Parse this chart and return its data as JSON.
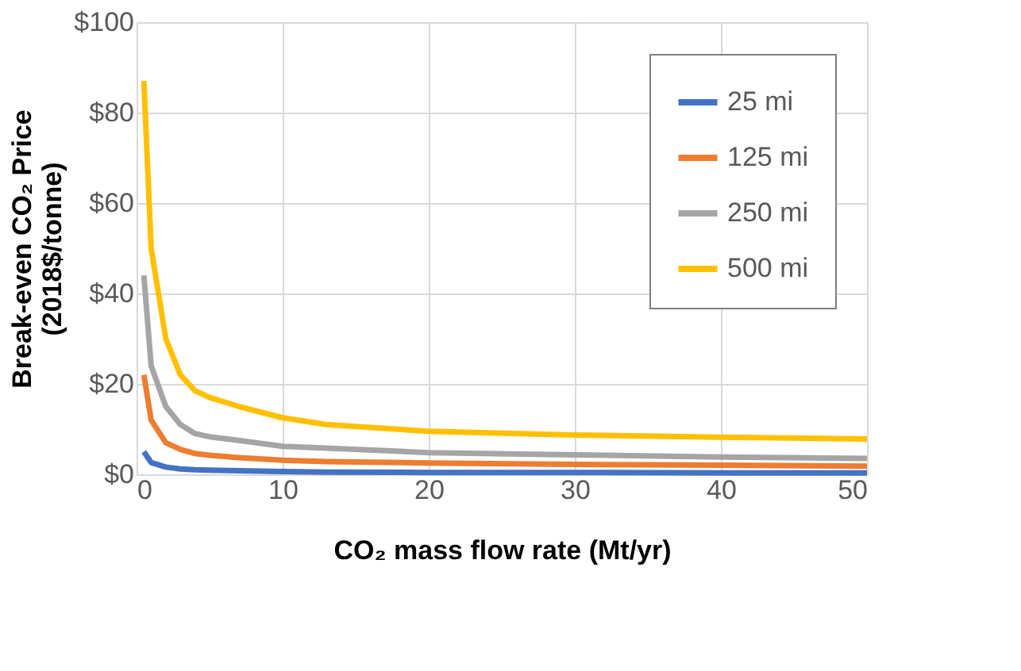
{
  "chart_data": {
    "type": "line",
    "xlabel": "CO₂ mass flow rate (Mt/yr)",
    "ylabel": "Break-even CO₂ Price\n(2018$/tonne)",
    "x": [
      0.5,
      1,
      2,
      3,
      4,
      5,
      7,
      10,
      13,
      20,
      30,
      40,
      50
    ],
    "series": [
      {
        "name": "25 mi",
        "color": "#4472c4",
        "values": [
          5,
          2.6,
          1.6,
          1.2,
          1.0,
          0.9,
          0.8,
          0.6,
          0.5,
          0.4,
          0.4,
          0.3,
          0.3
        ]
      },
      {
        "name": "125 mi",
        "color": "#ed7d31",
        "values": [
          22,
          12,
          7,
          5.5,
          4.6,
          4.2,
          3.7,
          3.1,
          2.8,
          2.5,
          2.2,
          2.0,
          1.8
        ]
      },
      {
        "name": "250 mi",
        "color": "#a5a5a5",
        "values": [
          44,
          24,
          15,
          11,
          9,
          8.3,
          7.5,
          6.2,
          5.8,
          4.8,
          4.3,
          3.8,
          3.5
        ]
      },
      {
        "name": "500 mi",
        "color": "#ffc000",
        "values": [
          87,
          50,
          30,
          22,
          18.5,
          17,
          15,
          12.5,
          11,
          9.5,
          8.7,
          8.2,
          7.8
        ]
      }
    ],
    "xlim": [
      0,
      50
    ],
    "xticks": [
      0,
      10,
      20,
      30,
      40,
      50
    ],
    "ylim": [
      0,
      100
    ],
    "yticks": [
      {
        "value": 0,
        "label": "$0"
      },
      {
        "value": 20,
        "label": "$20"
      },
      {
        "value": 40,
        "label": "$40"
      },
      {
        "value": 60,
        "label": "$60"
      },
      {
        "value": 80,
        "label": "$80"
      },
      {
        "value": 100,
        "label": "$100"
      }
    ],
    "grid": true,
    "legend": "top right",
    "marker": "none",
    "line_style": "solid"
  }
}
